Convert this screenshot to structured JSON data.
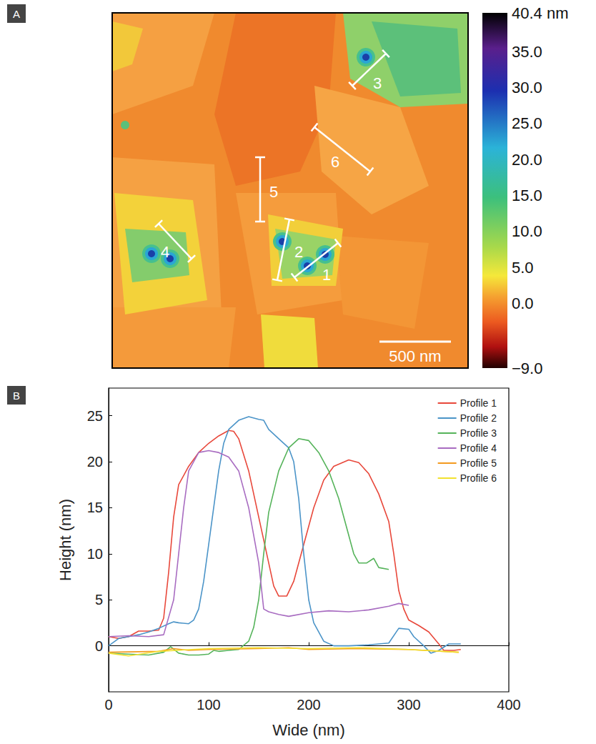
{
  "chart_data": [
    {
      "type": "image",
      "label": "A",
      "colorbar": {
        "lim": [
          -9,
          40.4
        ],
        "ticks": [
          {
            "value": 40.4,
            "label": "40.4 nm"
          },
          {
            "value": 35,
            "label": "35.0"
          },
          {
            "value": 30,
            "label": "30.0"
          },
          {
            "value": 25,
            "label": "25.0"
          },
          {
            "value": 20,
            "label": "20.0"
          },
          {
            "value": 15,
            "label": "15.0"
          },
          {
            "value": 10,
            "label": "10.0"
          },
          {
            "value": 5,
            "label": "5.0"
          },
          {
            "value": 0,
            "label": "0.0"
          },
          {
            "value": -9,
            "label": "−9.0"
          }
        ]
      },
      "profile_labels": [
        "1",
        "2",
        "3",
        "4",
        "5",
        "6"
      ],
      "scale_bar": "500 nm"
    },
    {
      "type": "line",
      "label": "B",
      "x_label": "Wide (nm)",
      "y_label": "Height (nm)",
      "xlim": [
        0,
        400
      ],
      "xticks": [
        0,
        100,
        200,
        300,
        400
      ],
      "ylim": [
        -5,
        28
      ],
      "yticks": [
        0,
        5,
        10,
        15,
        20,
        25
      ],
      "legend": "upper right",
      "series": [
        {
          "name": "Profile 1",
          "color": "#e8483b",
          "x": [
            0,
            10,
            20,
            30,
            40,
            50,
            55,
            60,
            65,
            70,
            80,
            90,
            100,
            110,
            120,
            125,
            130,
            140,
            150,
            160,
            165,
            170,
            178,
            185,
            195,
            205,
            215,
            225,
            240,
            250,
            260,
            270,
            280,
            285,
            290,
            295,
            300,
            310,
            320,
            330,
            335,
            345,
            352
          ],
          "values": [
            1,
            0.8,
            1,
            1.6,
            1.6,
            1.7,
            3,
            8,
            14,
            17.5,
            19.5,
            21,
            22,
            22.8,
            23.4,
            23.3,
            22.5,
            19,
            14,
            9,
            6.5,
            5.4,
            5.4,
            7,
            11,
            15,
            18,
            19.5,
            20.2,
            19.9,
            18.7,
            16.5,
            13.5,
            10,
            6,
            4,
            2.8,
            2.2,
            1.5,
            0.2,
            -0.5,
            -0.5,
            -0.4
          ]
        },
        {
          "name": "Profile 2",
          "color": "#4b94c8",
          "x": [
            0,
            10,
            20,
            30,
            40,
            50,
            60,
            65,
            70,
            80,
            85,
            90,
            95,
            100,
            105,
            110,
            115,
            120,
            130,
            140,
            150,
            155,
            160,
            170,
            180,
            185,
            190,
            195,
            200,
            205,
            215,
            225,
            240,
            260,
            280,
            290,
            300,
            305,
            315,
            322,
            330,
            340,
            352
          ],
          "values": [
            0,
            0.8,
            1,
            1.2,
            1.5,
            1.9,
            2.4,
            2.6,
            2.5,
            2.4,
            2.8,
            4,
            7,
            11,
            15,
            19,
            22,
            23.5,
            24.5,
            24.9,
            24.6,
            24.5,
            23.5,
            22.5,
            21.5,
            20,
            16,
            10,
            5,
            2.5,
            0.5,
            0,
            0,
            0.1,
            0.3,
            1.9,
            1.8,
            1,
            0,
            -0.8,
            -0.5,
            0.2,
            0.2
          ]
        },
        {
          "name": "Profile 3",
          "color": "#55b35a",
          "x": [
            0,
            20,
            40,
            55,
            62,
            70,
            80,
            90,
            100,
            105,
            110,
            120,
            130,
            140,
            145,
            150,
            155,
            160,
            170,
            180,
            190,
            200,
            210,
            220,
            230,
            240,
            245,
            250,
            258,
            265,
            270,
            280
          ],
          "values": [
            -0.8,
            -0.9,
            -1,
            -0.7,
            -0.1,
            -0.8,
            -1,
            -1,
            -0.9,
            -0.5,
            -0.6,
            -0.5,
            -0.4,
            0.5,
            2,
            5,
            10,
            14.5,
            19,
            21.5,
            22.5,
            22.3,
            21,
            19,
            16,
            12,
            10,
            9,
            9,
            9.5,
            8.5,
            8.3
          ]
        },
        {
          "name": "Profile 4",
          "color": "#a86cc1",
          "x": [
            0,
            20,
            40,
            55,
            65,
            70,
            75,
            80,
            90,
            100,
            110,
            120,
            130,
            140,
            150,
            155,
            160,
            170,
            180,
            200,
            220,
            240,
            260,
            280,
            290,
            300
          ],
          "values": [
            1,
            1.1,
            1,
            1.2,
            5,
            10,
            15,
            19,
            21,
            21.2,
            21,
            20.5,
            19,
            15,
            9,
            4,
            3.7,
            3.4,
            3.2,
            3.6,
            3.8,
            3.7,
            3.9,
            4.3,
            4.6,
            4.4
          ]
        },
        {
          "name": "Profile 5",
          "color": "#f39a1f",
          "x": [
            0,
            50,
            65,
            80,
            100,
            150,
            180,
            200,
            250,
            300,
            350
          ],
          "values": [
            -0.7,
            -0.6,
            -0.3,
            -0.5,
            -0.4,
            -0.3,
            -0.2,
            -0.4,
            -0.3,
            -0.4,
            -0.7
          ]
        },
        {
          "name": "Profile 6",
          "color": "#f2e12f",
          "x": [
            0,
            20,
            50,
            100,
            150,
            200,
            250,
            300,
            350
          ],
          "values": [
            -0.8,
            -1.1,
            -0.6,
            -0.3,
            -0.2,
            -0.3,
            -0.2,
            -0.4,
            -0.7
          ]
        }
      ]
    }
  ]
}
